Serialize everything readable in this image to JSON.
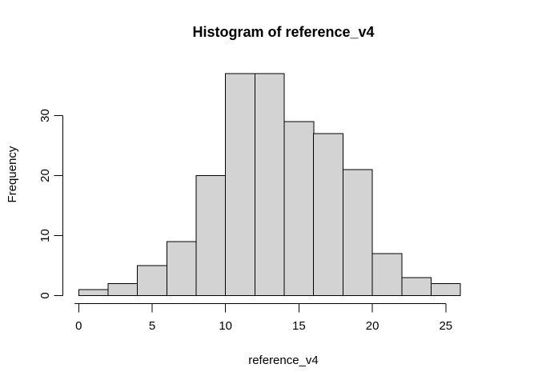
{
  "chart_data": {
    "type": "bar",
    "subtype": "histogram",
    "title": "Histogram of reference_v4",
    "xlabel": "reference_v4",
    "ylabel": "Frequency",
    "breaks": [
      0,
      2,
      4,
      6,
      8,
      10,
      12,
      14,
      16,
      18,
      20,
      22,
      24,
      26
    ],
    "counts": [
      1,
      2,
      5,
      9,
      20,
      37,
      37,
      29,
      27,
      21,
      7,
      3,
      2
    ],
    "x_ticks": [
      0,
      5,
      10,
      15,
      20,
      25
    ],
    "x_tick_labels": [
      "0",
      "5",
      "10",
      "15",
      "20",
      "25"
    ],
    "y_ticks": [
      0,
      10,
      20,
      30
    ],
    "y_tick_labels": [
      "0",
      "10",
      "20",
      "30"
    ],
    "xlim": [
      0,
      26
    ],
    "ylim": [
      0,
      37
    ],
    "grid": false,
    "legend": "none",
    "colors": {
      "bar_fill": "#d3d3d3",
      "bar_stroke": "#000000",
      "axis": "#000000",
      "text": "#000000",
      "background": "#ffffff"
    }
  }
}
